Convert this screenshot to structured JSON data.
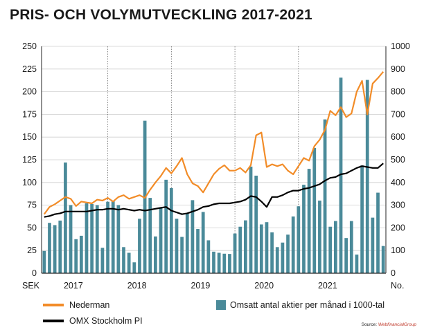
{
  "title": "PRIS- OCH VOLYMUTVECKLING 2017-2021",
  "source": {
    "label": "Source:",
    "brand": "WebfinancialGroup"
  },
  "colors": {
    "nederman": "#f28c28",
    "omx": "#000000",
    "bars": "#4a8a99",
    "grid": "#cfcfcf"
  },
  "chart_data": {
    "type": "bar+line",
    "left_axis": {
      "label": "SEK",
      "range": [
        0,
        250
      ],
      "ticks": [
        "0",
        "25",
        "50",
        "75",
        "100",
        "125",
        "150",
        "175",
        "200",
        "225",
        "250"
      ]
    },
    "right_axis": {
      "label": "No.",
      "range": [
        0,
        1000
      ],
      "ticks": [
        "0",
        "100",
        "200",
        "300",
        "400",
        "500",
        "600",
        "700",
        "800",
        "900",
        "1000"
      ]
    },
    "x_labels": [
      "2017",
      "2018",
      "2019",
      "2020",
      "2021"
    ],
    "legend": {
      "nederman": "Nederman",
      "omx": "OMX Stockholm PI",
      "bars": "Omsatt antal aktier per månad i 1000-tal"
    },
    "volume": [
      98,
      222,
      212,
      232,
      488,
      300,
      150,
      165,
      308,
      305,
      300,
      112,
      315,
      320,
      300,
      115,
      90,
      48,
      240,
      672,
      332,
      162,
      290,
      412,
      375,
      240,
      160,
      262,
      322,
      195,
      270,
      145,
      95,
      90,
      86,
      85,
      175,
      205,
      233,
      470,
      430,
      215,
      225,
      180,
      115,
      135,
      170,
      250,
      295,
      390,
      460,
      552,
      320,
      678,
      205,
      230,
      862,
      155,
      230,
      82,
      475,
      852,
      245,
      355,
      120
    ],
    "nederman": [
      65,
      73,
      76,
      80,
      84,
      82,
      74,
      79,
      78,
      77,
      81,
      80,
      83,
      79,
      84,
      86,
      82,
      84,
      86,
      83,
      92,
      100,
      107,
      116,
      110,
      118,
      127,
      109,
      99,
      96,
      89,
      99,
      109,
      115,
      119,
      113,
      113,
      116,
      111,
      119,
      152,
      155,
      117,
      120,
      118,
      120,
      113,
      109,
      118,
      127,
      124,
      140,
      147,
      158,
      179,
      174,
      183,
      172,
      176,
      200,
      212,
      175,
      209,
      215,
      222
    ],
    "omx": [
      62,
      63,
      65,
      66,
      68,
      68,
      68,
      68,
      68,
      69,
      70,
      70,
      71,
      71,
      70,
      71,
      70,
      69,
      70,
      69,
      70,
      71,
      72,
      73,
      69,
      67,
      65,
      66,
      68,
      70,
      73,
      74,
      76,
      77,
      77,
      77,
      78,
      79,
      81,
      85,
      84,
      79,
      73,
      84,
      84,
      86,
      89,
      91,
      91,
      93,
      94,
      96,
      98,
      102,
      105,
      106,
      109,
      110,
      113,
      116,
      118,
      117,
      116,
      116,
      121
    ]
  }
}
